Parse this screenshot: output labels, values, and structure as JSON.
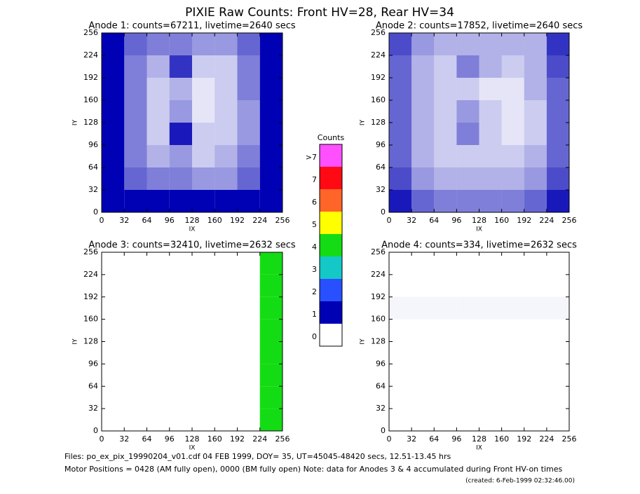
{
  "header": {
    "title": "PIXIE Raw Counts:  Front HV=28, Rear HV=34"
  },
  "colorbar": {
    "title": "Counts",
    "ticks": [
      0,
      1,
      2,
      3,
      4,
      5,
      6,
      7,
      {
        "value": 8,
        "label": ">7"
      }
    ],
    "colors": [
      "#ffffff",
      "#0000b4",
      "#2850ff",
      "#14c8c8",
      "#14dc14",
      "#ffff00",
      "#ff6428",
      "#ff0a14",
      "#ff50ff"
    ]
  },
  "chart_data": [
    {
      "type": "heatmap",
      "title": "Anode 1: counts=67211, livetime=2640 secs",
      "xlabel": "IX",
      "ylabel": "IY",
      "xlim": [
        0,
        256
      ],
      "ylim": [
        0,
        256
      ],
      "xticks": [
        0,
        32,
        64,
        96,
        128,
        160,
        192,
        224,
        256
      ],
      "yticks": [
        0,
        32,
        64,
        96,
        128,
        160,
        192,
        224,
        256
      ],
      "values": [
        [
          1.5,
          0.6,
          0.5,
          0.5,
          0.4,
          0.4,
          0.6,
          1.3
        ],
        [
          1.6,
          0.5,
          0.3,
          0.8,
          0.2,
          0.2,
          0.5,
          1.4
        ],
        [
          1.5,
          0.5,
          0.2,
          0.3,
          0.1,
          0.2,
          0.5,
          1.4
        ],
        [
          1.4,
          0.5,
          0.2,
          0.4,
          0.1,
          0.2,
          0.4,
          1.3
        ],
        [
          1.4,
          0.5,
          0.2,
          0.9,
          0.2,
          0.2,
          0.4,
          1.2
        ],
        [
          1.3,
          0.5,
          0.3,
          0.4,
          0.2,
          0.3,
          0.5,
          1.2
        ],
        [
          1.3,
          0.6,
          0.5,
          0.5,
          0.4,
          0.4,
          0.6,
          1.2
        ],
        [
          1.6,
          1.1,
          1.0,
          1.0,
          1.0,
          1.0,
          1.1,
          1.5
        ]
      ]
    },
    {
      "type": "heatmap",
      "title": "Anode 2: counts=17852, livetime=2640 secs",
      "xlabel": "IX",
      "ylabel": "IY",
      "xlim": [
        0,
        256
      ],
      "ylim": [
        0,
        256
      ],
      "xticks": [
        0,
        32,
        64,
        96,
        128,
        160,
        192,
        224,
        256
      ],
      "yticks": [
        0,
        32,
        64,
        96,
        128,
        160,
        192,
        224,
        256
      ],
      "values": [
        [
          0.7,
          0.4,
          0.3,
          0.3,
          0.3,
          0.3,
          0.3,
          0.8
        ],
        [
          0.6,
          0.3,
          0.2,
          0.5,
          0.3,
          0.2,
          0.3,
          0.7
        ],
        [
          0.6,
          0.3,
          0.2,
          0.2,
          0.1,
          0.1,
          0.3,
          0.6
        ],
        [
          0.6,
          0.3,
          0.2,
          0.4,
          0.2,
          0.1,
          0.2,
          0.6
        ],
        [
          0.6,
          0.3,
          0.2,
          0.5,
          0.2,
          0.1,
          0.2,
          0.6
        ],
        [
          0.6,
          0.3,
          0.2,
          0.2,
          0.2,
          0.2,
          0.3,
          0.6
        ],
        [
          0.7,
          0.4,
          0.3,
          0.3,
          0.3,
          0.3,
          0.4,
          0.7
        ],
        [
          0.9,
          0.6,
          0.5,
          0.5,
          0.5,
          0.5,
          0.6,
          0.9
        ]
      ]
    },
    {
      "type": "heatmap",
      "title": "Anode 3: counts=32410, livetime=2632 secs",
      "xlabel": "IX",
      "ylabel": "IY",
      "xlim": [
        0,
        256
      ],
      "ylim": [
        0,
        256
      ],
      "xticks": [
        0,
        32,
        64,
        96,
        128,
        160,
        192,
        224,
        256
      ],
      "yticks": [
        0,
        32,
        64,
        96,
        128,
        160,
        192,
        224,
        256
      ],
      "values": [
        [
          0,
          0,
          0,
          0,
          0,
          0,
          0,
          4
        ],
        [
          0,
          0,
          0,
          0,
          0,
          0,
          0,
          4
        ],
        [
          0,
          0,
          0,
          0,
          0,
          0,
          0,
          4
        ],
        [
          0,
          0,
          0,
          0,
          0,
          0,
          0,
          4
        ],
        [
          0,
          0,
          0,
          0,
          0,
          0,
          0,
          4
        ],
        [
          0,
          0,
          0,
          0,
          0,
          0,
          0,
          4
        ],
        [
          0,
          0,
          0,
          0,
          0,
          0,
          0,
          4
        ],
        [
          0,
          0,
          0,
          0,
          0,
          0,
          0,
          4
        ]
      ]
    },
    {
      "type": "heatmap",
      "title": "Anode 4: counts=334, livetime=2632 secs",
      "xlabel": "IX",
      "ylabel": "IY",
      "xlim": [
        0,
        256
      ],
      "ylim": [
        0,
        256
      ],
      "xticks": [
        0,
        32,
        64,
        96,
        128,
        160,
        192,
        224,
        256
      ],
      "yticks": [
        0,
        32,
        64,
        96,
        128,
        160,
        192,
        224,
        256
      ],
      "values": [
        [
          0,
          0,
          0,
          0,
          0,
          0,
          0,
          0
        ],
        [
          0,
          0,
          0,
          0,
          0,
          0,
          0,
          0
        ],
        [
          0.04,
          0.04,
          0.04,
          0.04,
          0.04,
          0.04,
          0.04,
          0.04
        ],
        [
          0,
          0,
          0,
          0,
          0,
          0,
          0,
          0
        ],
        [
          0,
          0,
          0,
          0,
          0,
          0,
          0,
          0
        ],
        [
          0,
          0,
          0,
          0,
          0,
          0,
          0,
          0
        ],
        [
          0,
          0,
          0,
          0,
          0,
          0,
          0,
          0
        ],
        [
          0,
          0,
          0,
          0,
          0,
          0,
          0,
          0
        ]
      ]
    }
  ],
  "footer": {
    "files": "Files: po_ex_pix_19990204_v01.cdf    04 FEB 1999, DOY= 35, UT=45045-48420 secs, 12.51-13.45 hrs",
    "motor": "Motor Positions = 0428 (AM fully open), 0000 (BM fully open)    Note: data for Anodes 3 & 4 accumulated during Front HV-on times",
    "created": "(created:  6-Feb-1999 02:32:46.00)"
  }
}
